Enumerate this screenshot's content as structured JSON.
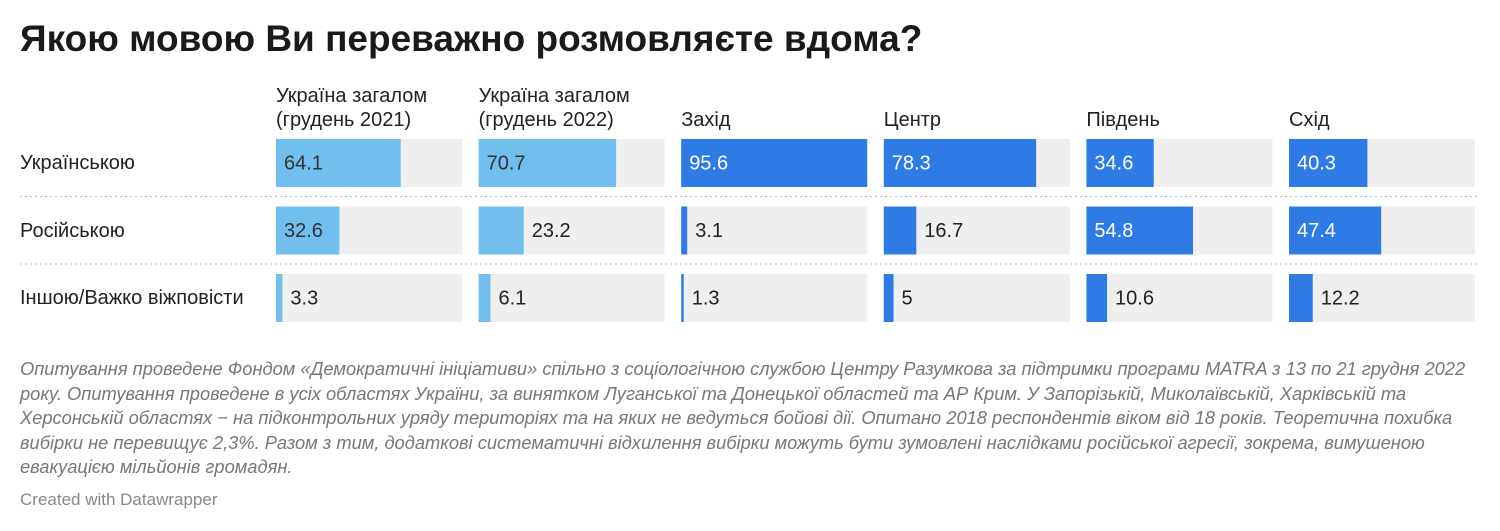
{
  "chart_data": {
    "type": "bar",
    "title": "Якою мовою Ви переважно розмовляєте вдома?",
    "categories": [
      "Українською",
      "Російською",
      "Іншою/Важко віжповісти"
    ],
    "series": [
      {
        "name": "Україна загалом (грудень 2021)",
        "color": "#70bfee",
        "label_color": "#333333",
        "values": [
          64.1,
          32.6,
          3.3
        ]
      },
      {
        "name": "Україна загалом (грудень 2022)",
        "color": "#70bfee",
        "label_color": "#333333",
        "values": [
          70.7,
          23.2,
          6.1
        ]
      },
      {
        "name": "Захід",
        "color": "#2f7be6",
        "label_color": "#ffffff",
        "values": [
          95.6,
          3.1,
          1.3
        ]
      },
      {
        "name": "Центр",
        "color": "#2f7be6",
        "label_color": "#ffffff",
        "values": [
          78.3,
          16.7,
          5
        ]
      },
      {
        "name": "Південь",
        "color": "#2f7be6",
        "label_color": "#ffffff",
        "values": [
          34.6,
          54.8,
          10.6
        ]
      },
      {
        "name": "Схід",
        "color": "#2f7be6",
        "label_color": "#ffffff",
        "values": [
          40.3,
          47.4,
          12.2
        ]
      }
    ],
    "xlim": [
      0,
      95.6
    ],
    "notes": "Опитування проведене Фондом «Демократичні ініціативи» спільно з соціологічною службою Центру Разумкова за підтримки програми MATRA з 13 по 21 грудня 2022 року. Опитування проведене в усіх областях України, за винятком Луганської та Донецької областей та АР Крим. У Запорізькій, Миколаївській, Харківській та Херсонській областях − на підконтрольних уряду територіях та на яких не ведуться бойові дії. Опитано 2018 респондентів віком від 18 років. Теоретична похибка вибірки не перевищує 2,3%. Разом з тим, додаткові систематичні відхилення вибірки можуть бути зумовлені наслідками російської агресії, зокрема, вимушеною евакуацією мільйонів громадян.",
    "credit": "Created with Datawrapper"
  }
}
